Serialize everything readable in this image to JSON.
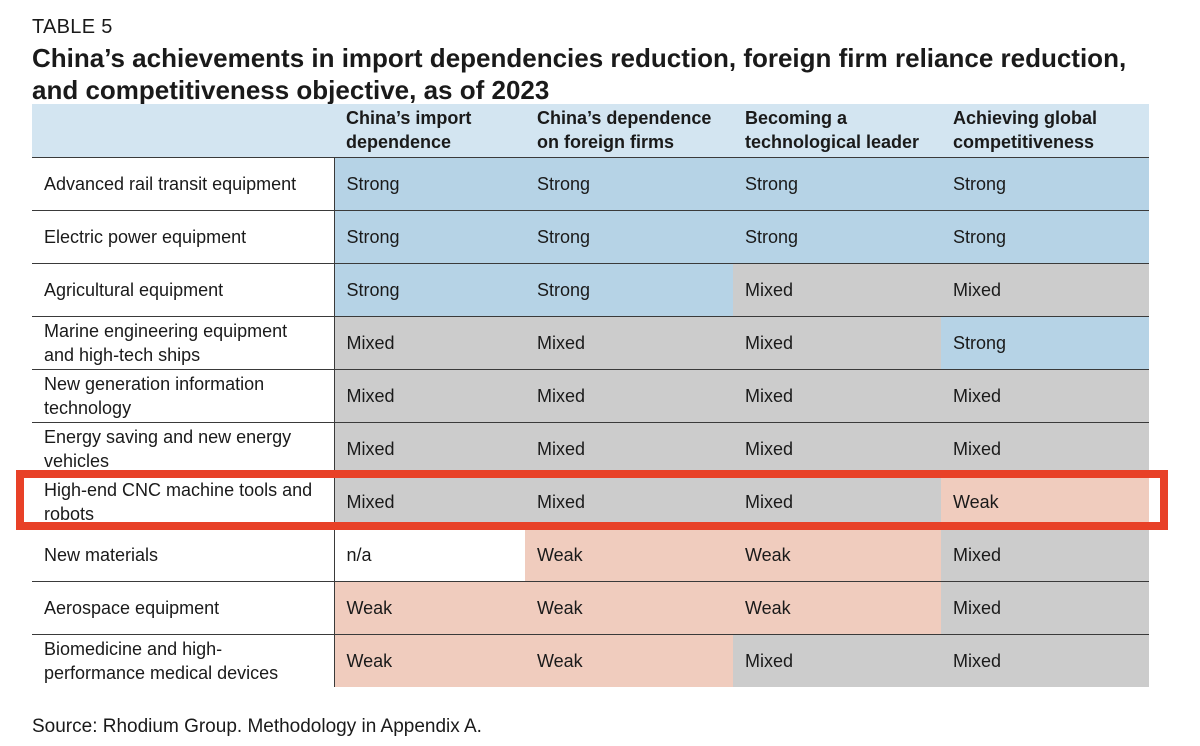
{
  "table_label": "TABLE 5",
  "title": "China’s achievements in import dependencies reduction, foreign firm reliance reduction, and competitiveness objective, as of 2023",
  "columns": [
    "",
    "China’s import dependence",
    "China’s dependence on foreign firms",
    "Becoming a technological leader",
    "Achieving global competitiveness"
  ],
  "rows": [
    {
      "label": "Advanced rail transit equipment",
      "values": [
        "Strong",
        "Strong",
        "Strong",
        "Strong"
      ]
    },
    {
      "label": "Electric power equipment",
      "values": [
        "Strong",
        "Strong",
        "Strong",
        "Strong"
      ]
    },
    {
      "label": "Agricultural equipment",
      "values": [
        "Strong",
        "Strong",
        "Mixed",
        "Mixed"
      ]
    },
    {
      "label": "Marine engineering equipment and high-tech ships",
      "values": [
        "Mixed",
        "Mixed",
        "Mixed",
        "Strong"
      ]
    },
    {
      "label": "New generation information technology",
      "values": [
        "Mixed",
        "Mixed",
        "Mixed",
        "Mixed"
      ]
    },
    {
      "label": "Energy saving and new energy vehicles",
      "values": [
        "Mixed",
        "Mixed",
        "Mixed",
        "Mixed"
      ]
    },
    {
      "label": "High-end CNC machine tools and robots",
      "values": [
        "Mixed",
        "Mixed",
        "Mixed",
        "Weak"
      ],
      "highlighted": true
    },
    {
      "label": "New materials",
      "values": [
        "n/a",
        "Weak",
        "Weak",
        "Mixed"
      ]
    },
    {
      "label": "Aerospace equipment",
      "values": [
        "Weak",
        "Weak",
        "Weak",
        "Mixed"
      ]
    },
    {
      "label": "Biomedicine and high-performance medical devices",
      "values": [
        "Weak",
        "Weak",
        "Mixed",
        "Mixed"
      ]
    }
  ],
  "colors": {
    "header_bg": "#d3e5f1",
    "strong": "#b6d3e6",
    "mixed": "#cccccc",
    "weak": "#f0ccbe",
    "highlight_border": "#e84127"
  },
  "source": "Source: Rhodium Group. Methodology in Appendix A."
}
